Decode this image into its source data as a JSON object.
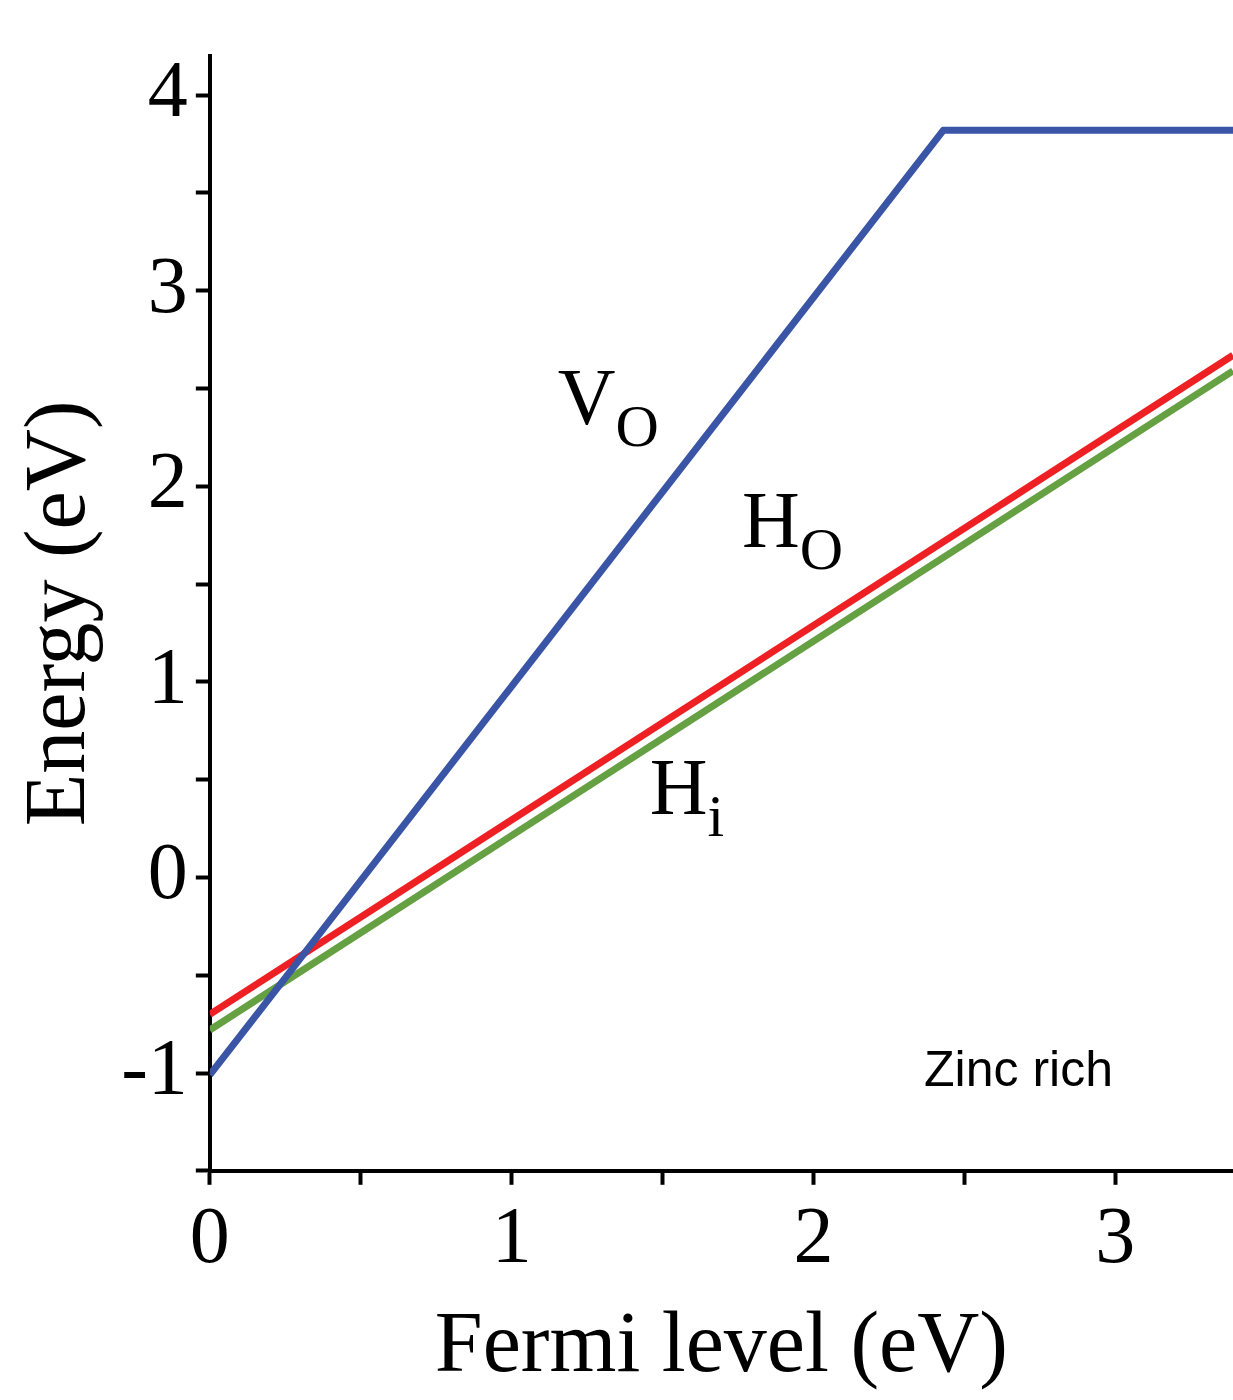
{
  "chart_data": {
    "type": "line",
    "xlabel": "Fermi level (eV)",
    "ylabel": "Energy (eV)",
    "xlim": [
      0,
      3.39
    ],
    "ylim": [
      -1.5,
      4.2
    ],
    "xticks": [
      0,
      {
        "value": 0.5,
        "label": null
      },
      1,
      {
        "value": 1.5,
        "label": null
      },
      2,
      {
        "value": 2.5,
        "label": null
      },
      3
    ],
    "yticks": [
      {
        "value": -1.5,
        "label": null
      },
      -1,
      {
        "value": -0.5,
        "label": null
      },
      0,
      {
        "value": 0.5,
        "label": null
      },
      1,
      {
        "value": 1.5,
        "label": null
      },
      2,
      {
        "value": 2.5,
        "label": null
      },
      3,
      {
        "value": 3.5,
        "label": null
      },
      4
    ],
    "series": [
      {
        "name": "V$_{O}$",
        "color": "#3a55a6",
        "x": [
          0,
          2.43,
          3.39
        ],
        "values": [
          -1.01,
          3.82,
          3.82
        ]
      },
      {
        "name": "H$_{O}$",
        "color": "#ee2024",
        "x": [
          0,
          3.39
        ],
        "values": [
          -0.7,
          2.67
        ]
      },
      {
        "name": "H$_{i}$",
        "color": "#65a042",
        "x": [
          0,
          3.39
        ],
        "values": [
          -0.78,
          2.59
        ]
      }
    ],
    "annotations": [
      "Zinc rich"
    ],
    "grid": false,
    "legend": false,
    "marker": "none",
    "line_style": "solid"
  }
}
